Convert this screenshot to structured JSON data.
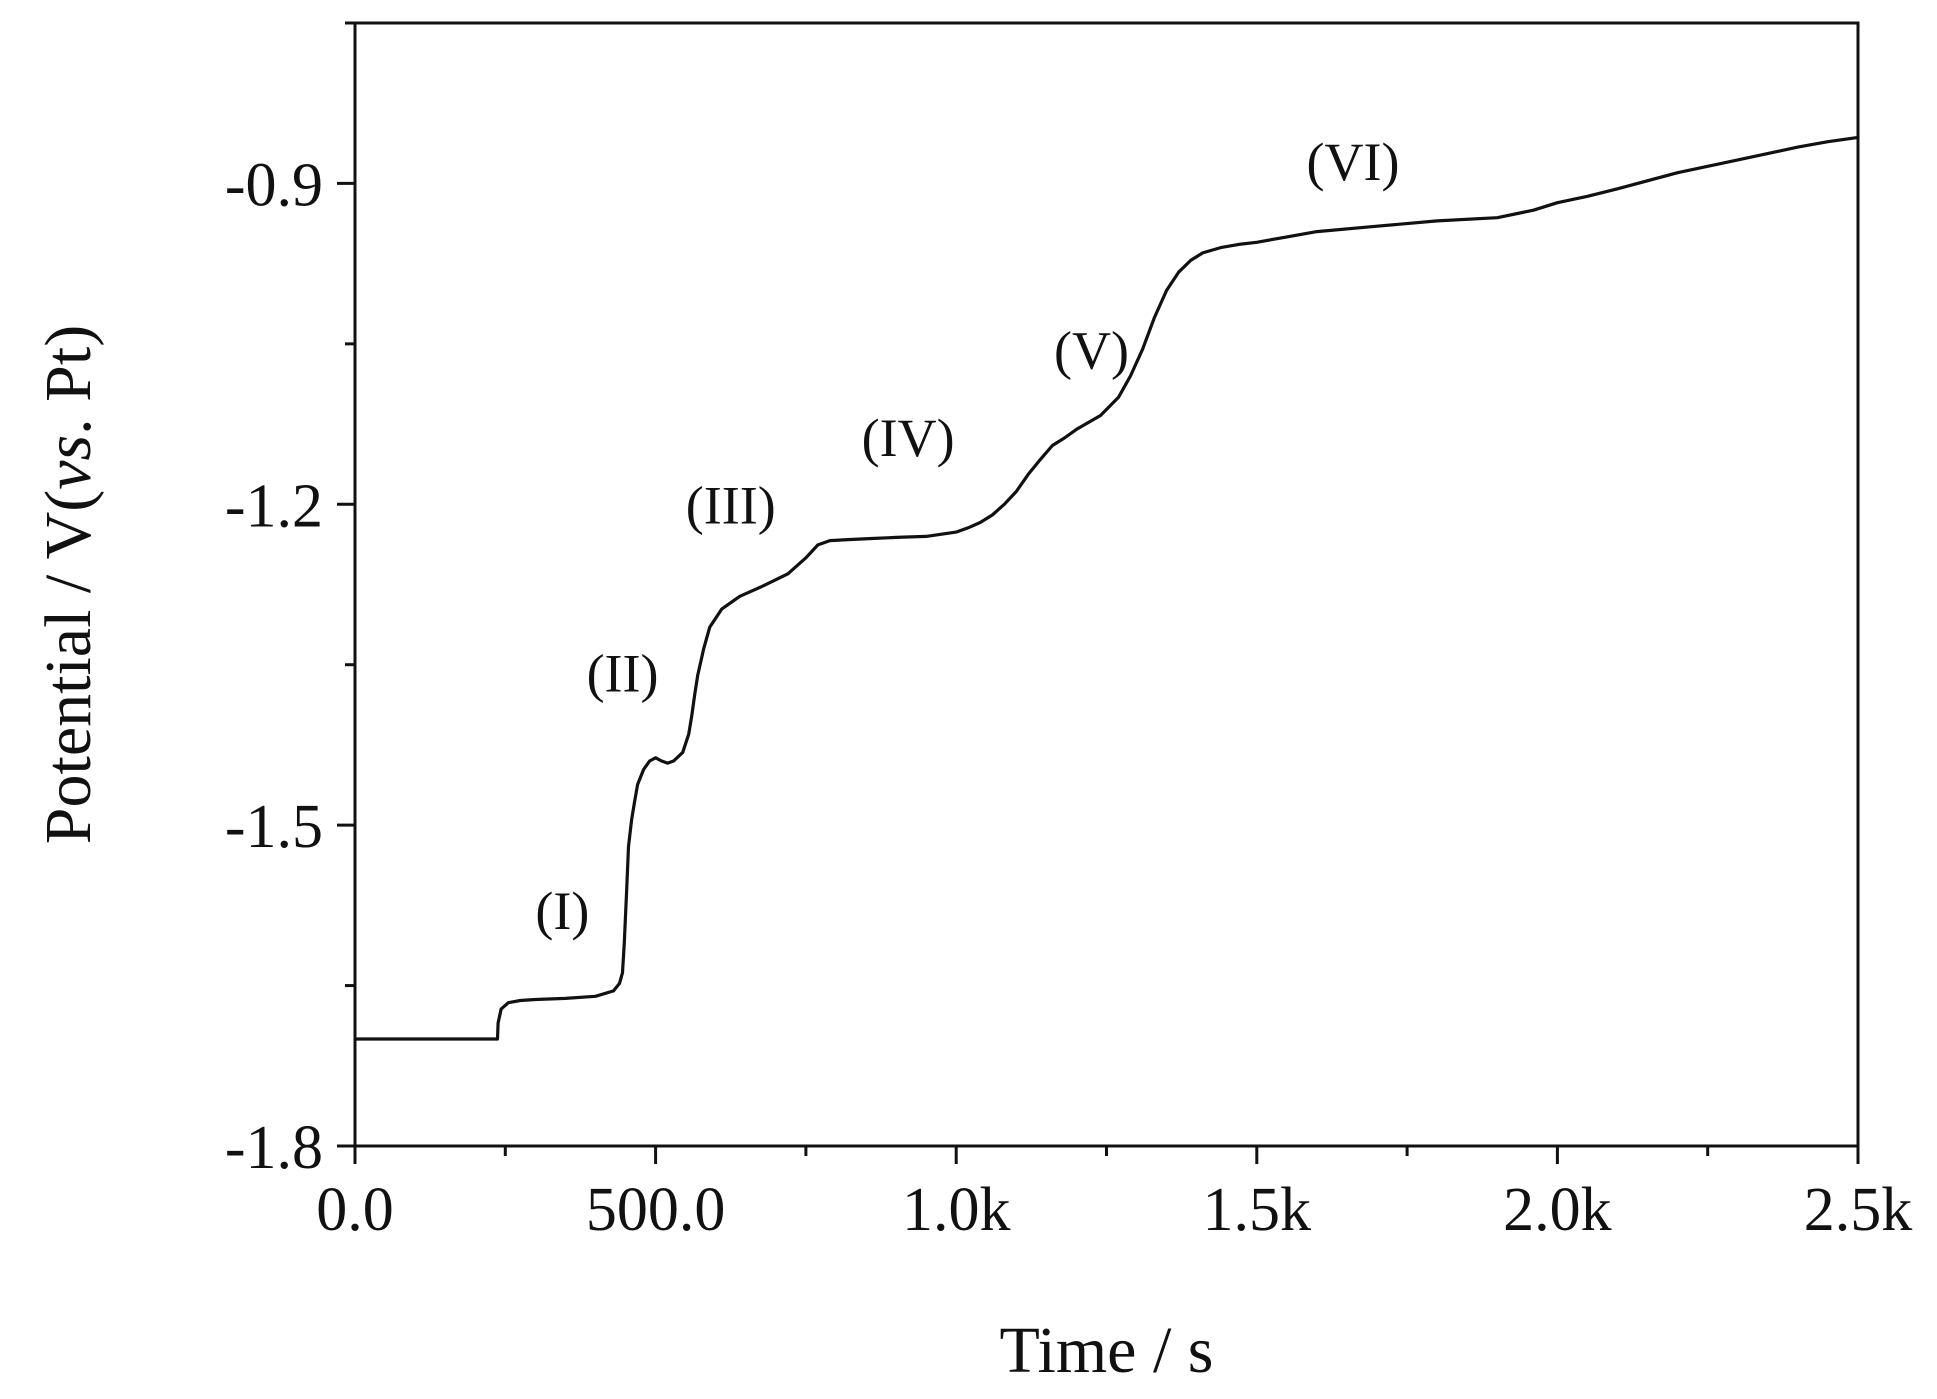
{
  "chart_data": {
    "type": "line",
    "title": "",
    "xlabel": "Time / s",
    "ylabel": {
      "prefix": "Potential / V(",
      "italic": "vs",
      "suffix": ". Pt)"
    },
    "xlim": [
      0,
      2500
    ],
    "ylim": [
      -1.8,
      -0.75
    ],
    "grid": false,
    "line_color": "#111111",
    "x_ticks": [
      {
        "value": 0,
        "label": "0.0"
      },
      {
        "value": 500,
        "label": "500.0"
      },
      {
        "value": 1000,
        "label": "1.0k"
      },
      {
        "value": 1500,
        "label": "1.5k"
      },
      {
        "value": 2000,
        "label": "2.0k"
      },
      {
        "value": 2500,
        "label": "2.5k"
      }
    ],
    "x_minor_ticks": [
      250,
      750,
      1250,
      1750,
      2250
    ],
    "y_ticks": [
      {
        "value": -1.8,
        "label": "-1.8"
      },
      {
        "value": -1.5,
        "label": "-1.5"
      },
      {
        "value": -1.2,
        "label": "-1.2"
      },
      {
        "value": -0.9,
        "label": "-0.9"
      }
    ],
    "y_minor_ticks": [
      -1.65,
      -1.35,
      -1.05,
      -0.75
    ],
    "series": [
      {
        "x": [
          0,
          100,
          200,
          237,
          238,
          243,
          255,
          275,
          300,
          350,
          400,
          430,
          440,
          445,
          448,
          452,
          455,
          460,
          465,
          470,
          480,
          490,
          500,
          510,
          520,
          530,
          545,
          555,
          560,
          565,
          570,
          580,
          590,
          610,
          640,
          680,
          720,
          750,
          770,
          790,
          820,
          860,
          900,
          950,
          1000,
          1020,
          1040,
          1060,
          1080,
          1100,
          1120,
          1140,
          1160,
          1180,
          1200,
          1240,
          1270,
          1290,
          1310,
          1330,
          1350,
          1370,
          1390,
          1410,
          1440,
          1470,
          1500,
          1550,
          1600,
          1700,
          1800,
          1900,
          1960,
          2000,
          2050,
          2100,
          2200,
          2300,
          2400,
          2450,
          2500
        ],
        "y": [
          -1.7,
          -1.7,
          -1.7,
          -1.7,
          -1.685,
          -1.672,
          -1.666,
          -1.664,
          -1.663,
          -1.662,
          -1.66,
          -1.655,
          -1.648,
          -1.638,
          -1.61,
          -1.56,
          -1.52,
          -1.495,
          -1.478,
          -1.462,
          -1.448,
          -1.44,
          -1.437,
          -1.44,
          -1.442,
          -1.44,
          -1.432,
          -1.415,
          -1.398,
          -1.378,
          -1.36,
          -1.335,
          -1.315,
          -1.298,
          -1.286,
          -1.276,
          -1.265,
          -1.25,
          -1.238,
          -1.234,
          -1.233,
          -1.232,
          -1.231,
          -1.23,
          -1.226,
          -1.222,
          -1.217,
          -1.21,
          -1.2,
          -1.188,
          -1.172,
          -1.158,
          -1.145,
          -1.138,
          -1.13,
          -1.117,
          -1.1,
          -1.08,
          -1.055,
          -1.025,
          -1.0,
          -0.983,
          -0.972,
          -0.965,
          -0.96,
          -0.957,
          -0.955,
          -0.95,
          -0.945,
          -0.94,
          -0.935,
          -0.932,
          -0.925,
          -0.918,
          -0.912,
          -0.905,
          -0.89,
          -0.878,
          -0.866,
          -0.861,
          -0.857
        ]
      }
    ],
    "annotations": [
      {
        "label": "(I)",
        "x": 345,
        "y": -1.597
      },
      {
        "label": "(II)",
        "x": 445,
        "y": -1.375
      },
      {
        "label": "(III)",
        "x": 625,
        "y": -1.218
      },
      {
        "label": "(IV)",
        "x": 920,
        "y": -1.155
      },
      {
        "label": "(V)",
        "x": 1225,
        "y": -1.073
      },
      {
        "label": "(VI)",
        "x": 1660,
        "y": -0.897
      }
    ]
  }
}
